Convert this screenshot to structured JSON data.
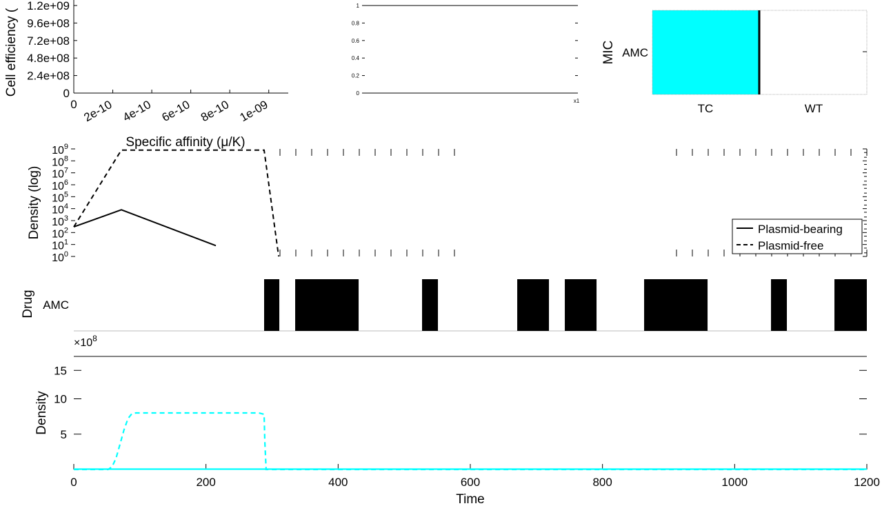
{
  "chart_data": [
    {
      "id": "cell-efficiency",
      "type": "line",
      "xlabel": "Specific affinity (μ/K)",
      "ylabel": "Cell efficiency (",
      "xticks": [
        "0",
        "2e-10",
        "4e-10",
        "6e-10",
        "8e-10",
        "1e-09"
      ],
      "xtick_values": [
        0,
        2e-10,
        4e-10,
        6e-10,
        8e-10,
        1e-09
      ],
      "yticks": [
        "0",
        "2.4e+08",
        "4.8e+08",
        "7.2e+08",
        "9.6e+08",
        "1.2e+09"
      ],
      "ytick_values": [
        0,
        240000000.0,
        480000000.0,
        720000000.0,
        960000000.0,
        1200000000.0
      ],
      "xlim": [
        0,
        1.1e-09
      ],
      "ylim": [
        0,
        1200000000.0
      ],
      "series": []
    },
    {
      "id": "empty-axes",
      "type": "line",
      "xticks": [
        "x1"
      ],
      "yticks": [
        "0",
        "0.2",
        "0.4",
        "0.6",
        "0.8",
        "1"
      ],
      "ytick_values": [
        0,
        0.2,
        0.4,
        0.6,
        0.8,
        1
      ],
      "ylim": [
        0,
        1
      ],
      "series": []
    },
    {
      "id": "mic",
      "type": "heatmap",
      "ylabel": "MIC",
      "rows": [
        "AMC"
      ],
      "categories": [
        "TC",
        "WT"
      ],
      "cells": [
        {
          "category": "TC",
          "color": "#00ffff"
        },
        {
          "category": "WT",
          "color": "#ffffff"
        }
      ]
    },
    {
      "id": "density-log",
      "type": "line",
      "ylabel": "Density (log)",
      "yscale": "log",
      "ylim": [
        1,
        1000000000.0
      ],
      "xlim": [
        0,
        1200
      ],
      "yticks": [
        {
          "base": "10",
          "exp": "0",
          "value": 1
        },
        {
          "base": "10",
          "exp": "1",
          "value": 10
        },
        {
          "base": "10",
          "exp": "2",
          "value": 100
        },
        {
          "base": "10",
          "exp": "3",
          "value": 1000
        },
        {
          "base": "10",
          "exp": "4",
          "value": 10000
        },
        {
          "base": "10",
          "exp": "5",
          "value": 100000
        },
        {
          "base": "10",
          "exp": "6",
          "value": 1000000
        },
        {
          "base": "10",
          "exp": "7",
          "value": 10000000
        },
        {
          "base": "10",
          "exp": "8",
          "value": 100000000
        },
        {
          "base": "10",
          "exp": "9",
          "value": 1000000000
        }
      ],
      "legend": [
        "Plasmid-bearing",
        "Plasmid-free"
      ],
      "legend_position": "bottom-right",
      "series": [
        {
          "name": "Plasmid-bearing",
          "style": "solid",
          "color": "#000000",
          "x": [
            0,
            72,
            215
          ],
          "y": [
            300,
            8000,
            8
          ]
        },
        {
          "name": "Plasmid-free",
          "style": "dashed",
          "color": "#000000",
          "x": [
            0,
            72,
            288,
            310
          ],
          "y": [
            300,
            800000000.0,
            800000000.0,
            1
          ]
        }
      ]
    },
    {
      "id": "drug",
      "type": "bar",
      "ylabel": "Drug",
      "row_label": "AMC",
      "xlim": [
        0,
        1200
      ],
      "color": "#000000",
      "intervals": [
        [
          288,
          311
        ],
        [
          335,
          431
        ],
        [
          527,
          551
        ],
        [
          671,
          719
        ],
        [
          743,
          791
        ],
        [
          863,
          959
        ],
        [
          1055,
          1079
        ],
        [
          1151,
          1200
        ]
      ]
    },
    {
      "id": "density",
      "type": "line",
      "xlabel": "Time",
      "ylabel": "Density",
      "scale_label": "×10",
      "scale_exp": "8",
      "xlim": [
        0,
        1200
      ],
      "ylim": [
        0,
        16
      ],
      "xticks": [
        "0",
        "200",
        "400",
        "600",
        "800",
        "1000",
        "1200"
      ],
      "xtick_values": [
        0,
        200,
        400,
        600,
        800,
        1000,
        1200
      ],
      "yticks": [
        "5",
        "10",
        "15"
      ],
      "ytick_values": [
        5,
        10,
        15
      ],
      "series": [
        {
          "style": "dashed",
          "color": "#00ffff",
          "x": [
            0,
            52,
            58,
            64,
            70,
            76,
            82,
            88,
            94,
            280,
            288,
            289,
            291,
            300,
            1200
          ],
          "y": [
            0,
            0,
            0.4,
            1.6,
            3.6,
            5.6,
            7.2,
            7.9,
            8.0,
            8.0,
            7.8,
            4.0,
            0,
            0,
            0
          ]
        },
        {
          "style": "solid",
          "color": "#00ffff",
          "x": [
            0,
            1200
          ],
          "y": [
            0.05,
            0.05
          ]
        }
      ]
    }
  ]
}
